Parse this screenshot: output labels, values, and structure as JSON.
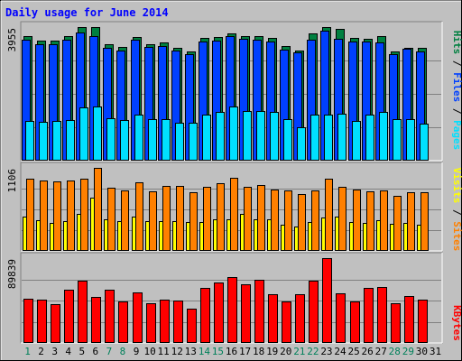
{
  "chart_data": {
    "type": "bar",
    "title": "Daily usage for June 2014",
    "categories": [
      "1",
      "2",
      "3",
      "4",
      "5",
      "6",
      "7",
      "8",
      "9",
      "10",
      "11",
      "12",
      "13",
      "14",
      "15",
      "16",
      "17",
      "18",
      "19",
      "20",
      "21",
      "22",
      "23",
      "24",
      "25",
      "26",
      "27",
      "28",
      "29",
      "30",
      "31"
    ],
    "weekend_days": [
      "1",
      "7",
      "8",
      "14",
      "15",
      "21",
      "22",
      "28",
      "29"
    ],
    "panels": [
      {
        "name": "hits-files-pages",
        "max_label": "3955",
        "max": 3955,
        "series": [
          {
            "name": "Hits",
            "color": "#008040",
            "values": [
              3690,
              3555,
              3555,
              3685,
              3955,
              3955,
              3450,
              3370,
              3655,
              3460,
              3510,
              3350,
              3245,
              3635,
              3650,
              3775,
              3690,
              3690,
              3630,
              3390,
              3270,
              3770,
              3955,
              3900,
              3630,
              3610,
              3675,
              3235,
              3345,
              3330,
              null
            ]
          },
          {
            "name": "Files",
            "color": "#0040ff",
            "values": [
              3590,
              3450,
              3460,
              3580,
              3800,
              3685,
              3340,
              3270,
              3580,
              3355,
              3400,
              3270,
              3150,
              3530,
              3560,
              3700,
              3600,
              3590,
              3540,
              3280,
              3210,
              3580,
              3840,
              3600,
              3520,
              3520,
              3510,
              3150,
              3310,
              3230,
              null
            ]
          },
          {
            "name": "Pages",
            "color": "#00e0ff",
            "values": [
              1165,
              1155,
              1165,
              1210,
              1575,
              1610,
              1245,
              1200,
              1350,
              1235,
              1220,
              1110,
              1130,
              1370,
              1440,
              1600,
              1465,
              1480,
              1440,
              1220,
              985,
              1365,
              1375,
              1400,
              1175,
              1370,
              1445,
              1225,
              1225,
              1095,
              null
            ]
          }
        ]
      },
      {
        "name": "visits-sites",
        "max_label": "1106",
        "max": 1106,
        "series": [
          {
            "name": "Visits",
            "color": "#ffff00",
            "values": [
              460,
              410,
              375,
              395,
              490,
              715,
              415,
              395,
              460,
              400,
              400,
              400,
              380,
              385,
              425,
              420,
              495,
              420,
              420,
              345,
              320,
              380,
              440,
              460,
              385,
              375,
              410,
              360,
              370,
              345,
              null
            ]
          },
          {
            "name": "Sites",
            "color": "#ff8000",
            "values": [
              960,
              935,
              920,
              940,
              965,
              1106,
              845,
              810,
              910,
              795,
              865,
              860,
              785,
              855,
              900,
              975,
              855,
              880,
              820,
              800,
              755,
              800,
              960,
              855,
              820,
              790,
              810,
              735,
              780,
              780,
              null
            ]
          }
        ]
      },
      {
        "name": "kbytes",
        "max_label": "89839",
        "max": 89839,
        "series": [
          {
            "name": "KBytes",
            "color": "#ff0000",
            "values": [
              47000,
              45500,
              41500,
              56000,
              66000,
              48500,
              56500,
              43500,
              53500,
              42500,
              45500,
              44500,
              36500,
              58000,
              64000,
              70000,
              62500,
              67000,
              51500,
              44000,
              52000,
              65500,
              89839,
              53000,
              43500,
              58500,
              59000,
              42000,
              50000,
              46000,
              null
            ]
          }
        ]
      }
    ],
    "legend_position": "right",
    "grid": true
  }
}
